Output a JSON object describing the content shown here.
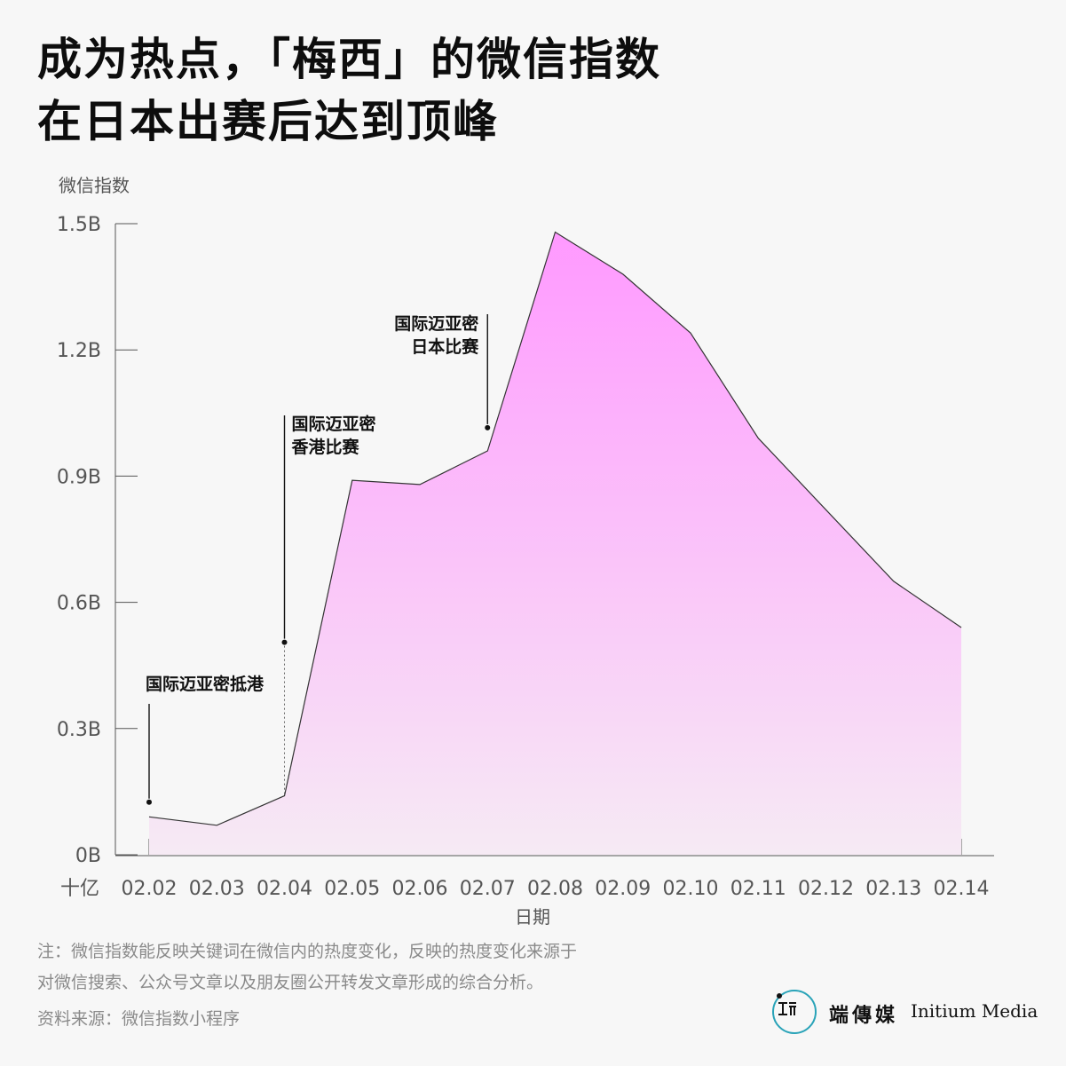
{
  "title": {
    "line1": "成为热点，「梅西」的微信指数",
    "line2": "在日本出赛后达到顶峰"
  },
  "chart_data": {
    "type": "area",
    "ylabel": "微信指数",
    "xlabel": "日期",
    "y_unit": "十亿",
    "ylim": [
      0,
      1.5
    ],
    "yticks": [
      "0B",
      "0.3B",
      "0.6B",
      "0.9B",
      "1.2B",
      "1.5B"
    ],
    "ytick_values": [
      0,
      0.3,
      0.6,
      0.9,
      1.2,
      1.5
    ],
    "categories": [
      "02.02",
      "02.03",
      "02.04",
      "02.05",
      "02.06",
      "02.07",
      "02.08",
      "02.09",
      "02.10",
      "02.11",
      "02.12",
      "02.13",
      "02.14"
    ],
    "values": [
      0.09,
      0.07,
      0.14,
      0.89,
      0.88,
      0.96,
      1.48,
      1.38,
      1.24,
      0.99,
      0.82,
      0.65,
      0.54
    ],
    "fill_top_color": "#ff99ff",
    "fill_bottom_color": "#f6eaf4",
    "line_color": "#333333",
    "annotations": [
      {
        "lines": [
          "国际迈亚密抵港"
        ],
        "category": "02.02",
        "value": 0.125
      },
      {
        "lines": [
          "国际迈亚密",
          "香港比赛"
        ],
        "category": "02.04",
        "value": 0.505
      },
      {
        "lines": [
          "国际迈亚密",
          "日本比赛"
        ],
        "category": "02.07",
        "value": 1.015
      }
    ]
  },
  "note": {
    "line1": "注：微信指数能反映关键词在微信内的热度变化，反映的热度变化来源于",
    "line2": "对微信搜索、公众号文章以及朋友圈公开转发文章形成的综合分析。"
  },
  "source": "资料来源：微信指数小程序",
  "brand": {
    "name_cn": "端傳媒",
    "name_en": "Initium Media",
    "accent_color": "#29a3b8"
  }
}
